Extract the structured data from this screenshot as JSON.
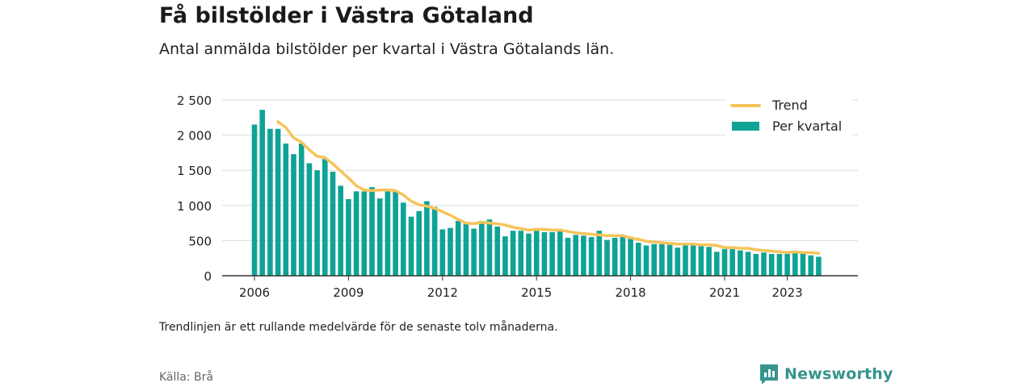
{
  "title": "Få bilstölder i Västra Götaland",
  "subtitle": "Antal anmälda bilstölder per kvartal i Västra Götalands län.",
  "note": "Trendlinjen är ett rullande medelvärde för de senaste tolv månaderna.",
  "source": "Källa: Brå",
  "brand": "Newsworthy",
  "colors": {
    "bar": "#0fa396",
    "trend": "#f7c45a",
    "grid": "#dddddd",
    "axis": "#333333",
    "brand": "#36958e"
  },
  "chart_data": {
    "type": "bar",
    "x_start": "2006 Q1",
    "yticks": [
      "0",
      "500",
      "1 000",
      "1 500",
      "2 000",
      "2 500"
    ],
    "ytick_values": [
      0,
      500,
      1000,
      1500,
      2000,
      2500
    ],
    "ylim": [
      0,
      2500
    ],
    "xticks": [
      "2006",
      "2009",
      "2012",
      "2015",
      "2018",
      "2021",
      "2023"
    ],
    "xtick_years": [
      2006,
      2009,
      2012,
      2015,
      2018,
      2021,
      2023
    ],
    "grid": true,
    "legend_position": "top-right",
    "series": [
      {
        "name": "Per kvartal",
        "type": "bar",
        "values": [
          2150,
          2360,
          2090,
          2090,
          1880,
          1730,
          1880,
          1600,
          1500,
          1660,
          1480,
          1280,
          1090,
          1200,
          1200,
          1260,
          1100,
          1200,
          1200,
          1040,
          840,
          920,
          1060,
          980,
          660,
          680,
          780,
          740,
          670,
          780,
          800,
          700,
          560,
          640,
          640,
          600,
          640,
          620,
          620,
          630,
          540,
          580,
          570,
          550,
          640,
          510,
          540,
          560,
          540,
          470,
          430,
          450,
          450,
          440,
          400,
          430,
          440,
          420,
          410,
          340,
          380,
          380,
          360,
          340,
          310,
          330,
          310,
          310,
          310,
          330,
          320,
          290,
          270
        ]
      },
      {
        "name": "Trend",
        "type": "line",
        "values": [
          null,
          null,
          null,
          2190,
          2110,
          1960,
          1900,
          1790,
          1700,
          1680,
          1590,
          1490,
          1390,
          1280,
          1220,
          1210,
          1220,
          1220,
          1210,
          1150,
          1060,
          1010,
          990,
          960,
          910,
          860,
          800,
          750,
          740,
          760,
          750,
          740,
          720,
          690,
          670,
          650,
          660,
          660,
          650,
          650,
          630,
          610,
          600,
          590,
          580,
          570,
          570,
          570,
          540,
          520,
          490,
          480,
          470,
          460,
          450,
          450,
          450,
          440,
          440,
          430,
          400,
          400,
          390,
          390,
          370,
          360,
          350,
          340,
          330,
          340,
          330,
          330,
          320
        ]
      }
    ]
  }
}
